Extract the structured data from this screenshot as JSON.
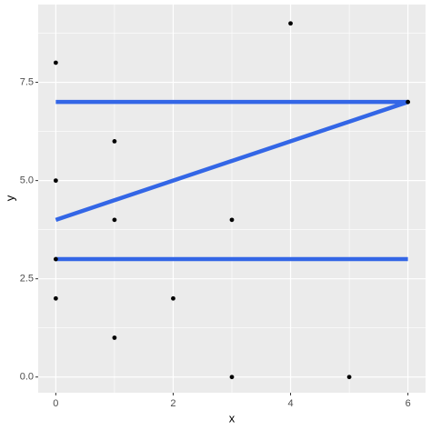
{
  "chart_data": {
    "type": "scatter_line",
    "x_label": "x",
    "y_label": "y",
    "points": {
      "color": "#000000",
      "x": [
        0,
        0,
        0,
        0,
        1,
        1,
        1,
        2,
        3,
        3,
        4,
        5,
        6
      ],
      "y": [
        8,
        5,
        3,
        2,
        6,
        4,
        1,
        2,
        4,
        0,
        9,
        0,
        7
      ]
    },
    "line": {
      "color": "#3366E6",
      "x": [
        0,
        6,
        0,
        null,
        0,
        6
      ],
      "y": [
        7,
        7,
        4,
        null,
        3,
        3
      ]
    },
    "xlim": [
      -0.3,
      6.3
    ],
    "ylim": [
      -0.4,
      9.48
    ],
    "xticks": [
      0,
      2,
      4,
      6
    ],
    "yticks": [
      {
        "value": 0,
        "label": "0.0"
      },
      2.5,
      {
        "value": 5,
        "label": "5.0"
      },
      7.5
    ],
    "x_minor_breaks": [
      1,
      3,
      5
    ],
    "y_minor_breaks": [
      1.25,
      3.75,
      6.25,
      8.75
    ],
    "grid": true
  }
}
